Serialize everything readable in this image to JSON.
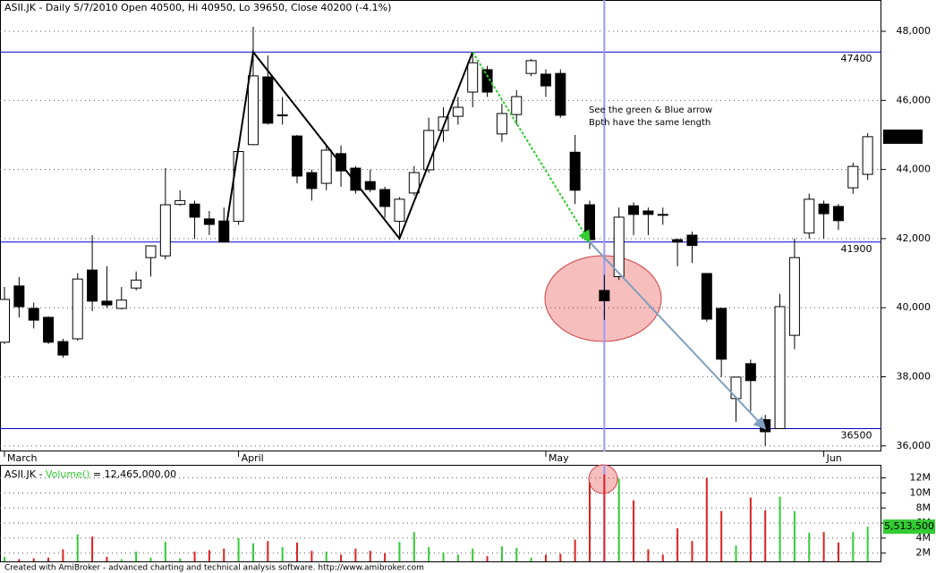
{
  "chart_data": {
    "type": "candlestick",
    "title": "ASII.JK - Daily 5/7/2010 Open 40500, Hi 40950, Lo 39650, Close 40200 (-4.1%)",
    "categories": [
      "March",
      null,
      null,
      null,
      null,
      null,
      null,
      null,
      null,
      null,
      null,
      null,
      null,
      null,
      null,
      null,
      "April",
      null,
      null,
      null,
      null,
      null,
      null,
      null,
      null,
      null,
      null,
      null,
      null,
      null,
      null,
      null,
      null,
      null,
      null,
      null,
      null,
      "May",
      null,
      null,
      null,
      null,
      null,
      null,
      null,
      null,
      null,
      null,
      null,
      null,
      null,
      null,
      null,
      null,
      null,
      null,
      "Jun",
      null,
      null,
      null
    ],
    "open": [
      39000,
      40630,
      39980,
      39720,
      39020,
      39100,
      41090,
      40190,
      39980,
      40570,
      41450,
      41500,
      42990,
      43000,
      42570,
      42510,
      42500,
      44720,
      46680,
      45560,
      44970,
      43910,
      43600,
      44460,
      44040,
      43650,
      43420,
      42500,
      43320,
      43990,
      45130,
      45540,
      46240,
      46890,
      45030,
      45590,
      46780,
      46760,
      46780,
      44500,
      42980,
      40500,
      40900,
      42950,
      42800,
      42700,
      41970,
      42100,
      40990,
      39980,
      37370,
      38380,
      36760,
      36500,
      39200,
      42160,
      43000,
      42930,
      43470,
      43860
    ],
    "high": [
      40600,
      40890,
      40150,
      39750,
      39100,
      41000,
      42100,
      41200,
      40600,
      41050,
      41800,
      44040,
      43400,
      43100,
      42800,
      42900,
      44550,
      48130,
      47300,
      46100,
      45000,
      44000,
      44700,
      44700,
      44100,
      44000,
      43500,
      43200,
      44100,
      45500,
      45800,
      46100,
      47400,
      47000,
      45900,
      46300,
      47200,
      46900,
      46900,
      45000,
      43100,
      40950,
      42900,
      43050,
      42900,
      42900,
      42000,
      42200,
      41000,
      40000,
      38000,
      38500,
      36900,
      40400,
      42000,
      43300,
      43100,
      43000,
      44200,
      45050
    ],
    "low": [
      38950,
      39720,
      39400,
      38950,
      38550,
      39050,
      39900,
      40000,
      39950,
      40500,
      40900,
      41400,
      42950,
      41990,
      42100,
      41900,
      42400,
      44700,
      45300,
      45300,
      43600,
      43100,
      43400,
      43500,
      43300,
      43350,
      42600,
      42000,
      43250,
      43900,
      44800,
      45300,
      45800,
      46100,
      44800,
      45300,
      46700,
      46100,
      45500,
      43000,
      41700,
      39650,
      40800,
      42100,
      42100,
      42400,
      41200,
      41300,
      39600,
      38000,
      36700,
      37000,
      36000,
      36500,
      38800,
      42000,
      42000,
      42250,
      43300,
      43700
    ],
    "close": [
      40240,
      40030,
      39640,
      39000,
      38630,
      40830,
      40190,
      40080,
      40220,
      40800,
      41790,
      42980,
      43100,
      42620,
      42410,
      41900,
      44520,
      46710,
      45340,
      45580,
      43810,
      43450,
      44560,
      43960,
      43400,
      43420,
      42930,
      43140,
      43910,
      45130,
      45520,
      45800,
      47090,
      46240,
      45620,
      46110,
      47150,
      46420,
      45570,
      43400,
      41970,
      40200,
      42620,
      42700,
      42700,
      42690,
      41900,
      41800,
      39670,
      38510,
      37990,
      37890,
      36410,
      40030,
      41450,
      43140,
      42720,
      42520,
      44090,
      44950
    ],
    "up_color": "#ffffff",
    "down_color": "#000000",
    "ylim": [
      35840,
      48906
    ],
    "yticks": [
      {
        "value": 36000,
        "label": "36,000"
      },
      {
        "value": 38000,
        "label": "38,000"
      },
      {
        "value": 40000,
        "label": "40,000"
      },
      {
        "value": 42000,
        "label": "42,000"
      },
      {
        "value": 44000,
        "label": "44,000"
      },
      {
        "value": 46000,
        "label": "46,000"
      },
      {
        "value": 48000,
        "label": "48,000"
      }
    ],
    "grid": true,
    "last_price": {
      "value": 44950,
      "label": "44,950"
    },
    "levels": [
      47400,
      41900,
      36500
    ],
    "level_color": "#0000cc",
    "marker_index": 41,
    "marker_color": "#9999ff",
    "zigzag": {
      "x": [
        15,
        17,
        27,
        32
      ],
      "values": [
        41900,
        47400,
        42000,
        47400
      ],
      "color": "#000000"
    },
    "arrows": [
      {
        "x": [
          32,
          40
        ],
        "values": [
          47400,
          41900
        ],
        "color": "#33cc33"
      },
      {
        "x": [
          40,
          52
        ],
        "values": [
          41900,
          36500
        ],
        "color": "#7f9fbf"
      }
    ],
    "annotation": [
      "See the green & Blue arrow",
      "Bpth have the same length"
    ],
    "volume": {
      "title_prefix": "ASII.JK - ",
      "title_name": "Volume()",
      "title_suffix": " = 12,465,000.00",
      "values": [
        1500000,
        1200000,
        1300000,
        1400000,
        2500000,
        4500000,
        4200000,
        1500000,
        1200000,
        2200000,
        1400000,
        3500000,
        1300000,
        2200000,
        2400000,
        2600000,
        4000000,
        3300000,
        3600000,
        2800000,
        3400000,
        2300000,
        2200000,
        1800000,
        2600000,
        2300000,
        2000000,
        3500000,
        4800000,
        2800000,
        2100000,
        1800000,
        2600000,
        1600000,
        2900000,
        2700000,
        1400000,
        1800000,
        1900000,
        3800000,
        11400000,
        12465000,
        11900000,
        9000000,
        2500000,
        1800000,
        5300000,
        3600000,
        12000000,
        7600000,
        3000000,
        9400000,
        7700000,
        9500000,
        7600000,
        4700000,
        4800000,
        3400000,
        4800000,
        5513500
      ],
      "up_color": "#33cc33",
      "down_color": "#dd2222",
      "ylim": [
        900000,
        13500000
      ],
      "yticks": [
        {
          "value": 2000000,
          "label": "2M"
        },
        {
          "value": 4000000,
          "label": "4M"
        },
        {
          "value": 6000000,
          "label": "6M"
        },
        {
          "value": 8000000,
          "label": "8M"
        },
        {
          "value": 10000000,
          "label": "10M"
        },
        {
          "value": 12000000,
          "label": "12M"
        }
      ],
      "last": {
        "value": 5513500,
        "label": "5,513,500"
      }
    },
    "footer": "Created with AmiBroker - advanced charting and technical analysis software. http://www.amibroker.com"
  }
}
